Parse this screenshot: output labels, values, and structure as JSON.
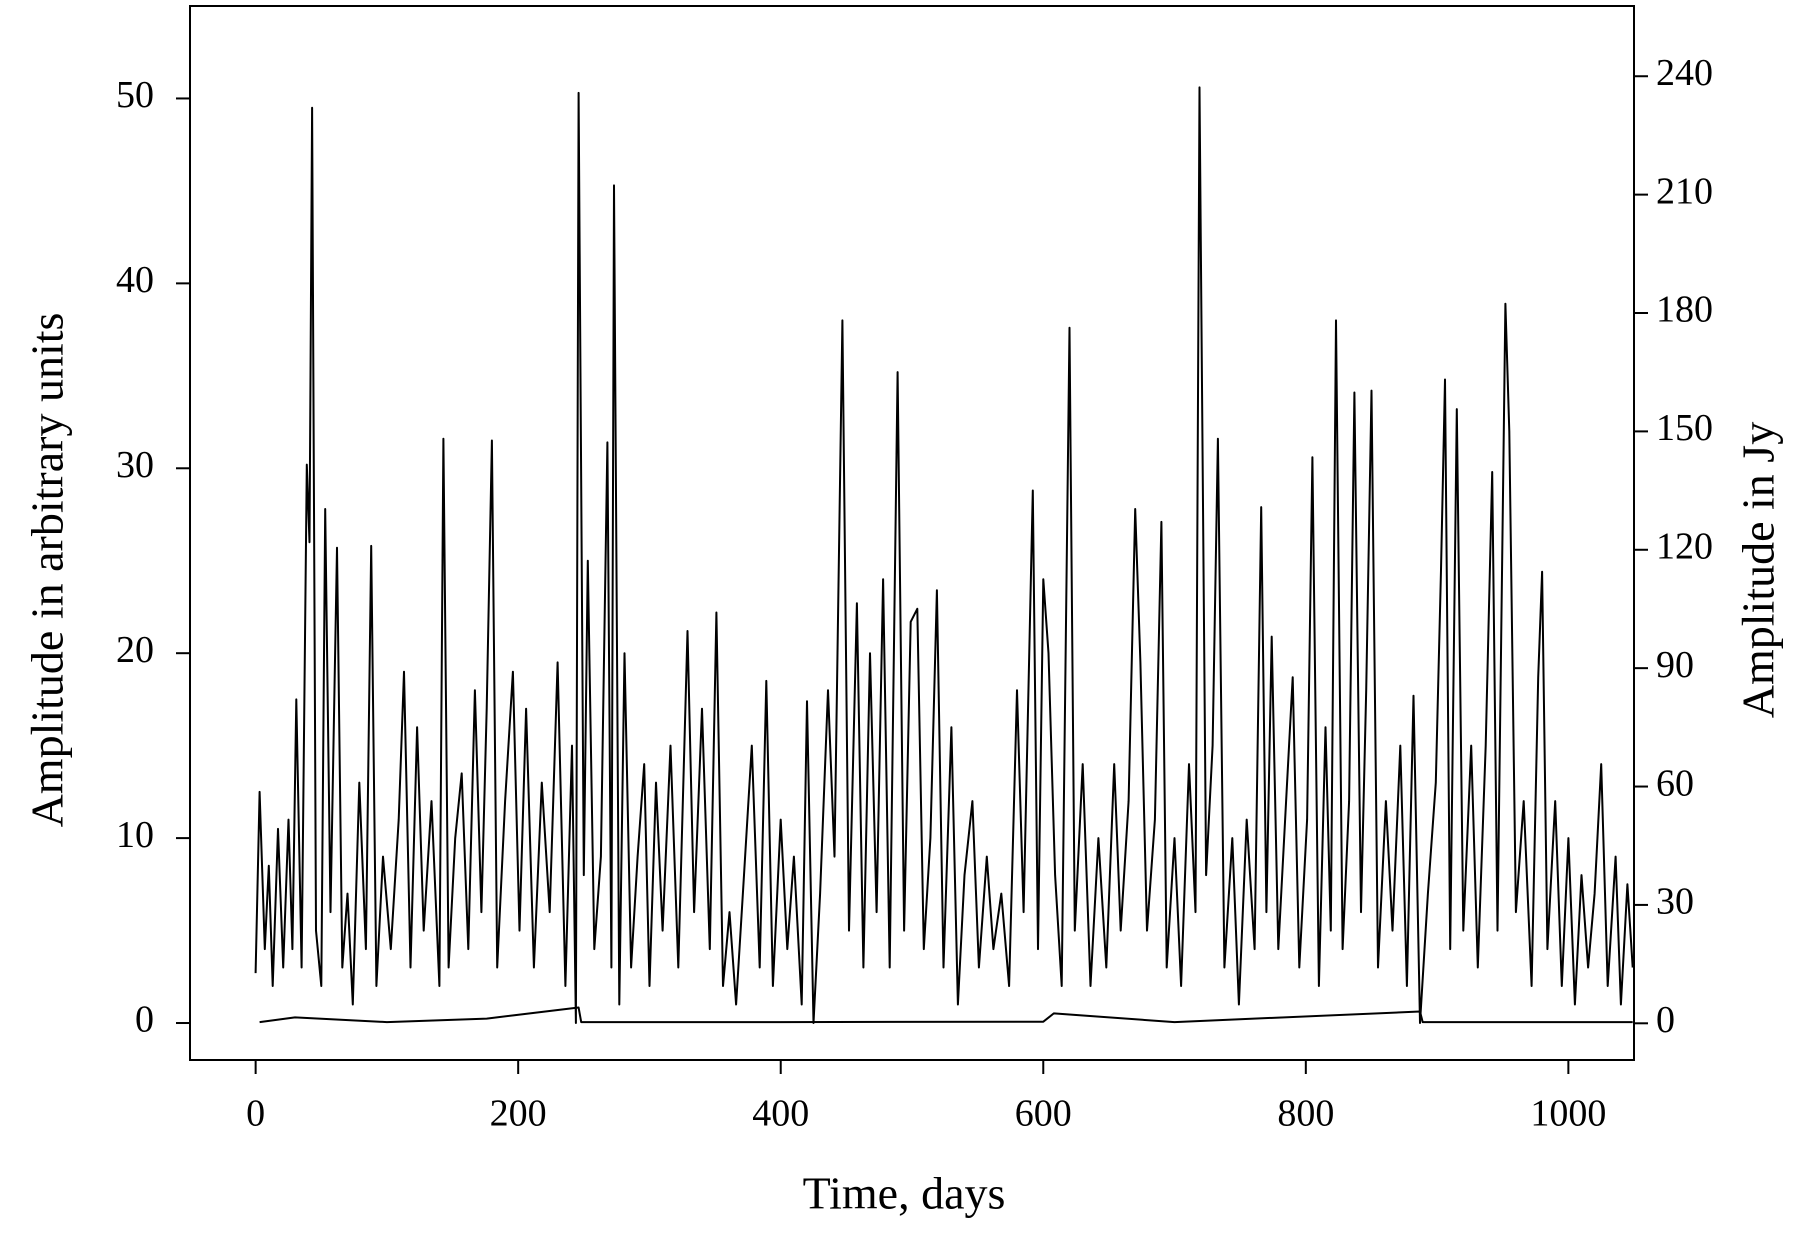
{
  "chart_data": {
    "type": "line",
    "xlabel": "Time, days",
    "ylabel": "Amplitude in arbitrary units",
    "y2label": "Amplitude in Jy",
    "xlim": [
      -50,
      1050
    ],
    "xticks": [
      0,
      200,
      400,
      600,
      800,
      1000
    ],
    "ylim": [
      -2,
      55
    ],
    "yticks": [
      0,
      10,
      20,
      30,
      40,
      50
    ],
    "y2lim": [
      -9.3,
      257.8
    ],
    "y2ticks": [
      0,
      30,
      60,
      90,
      120,
      150,
      180,
      210,
      240
    ],
    "series": [
      {
        "color": "#000000",
        "axis": "y",
        "x": [
          0,
          3,
          7,
          10,
          13,
          17,
          21,
          25,
          28,
          31,
          35,
          39,
          41,
          43,
          46,
          50,
          53,
          57,
          62,
          66,
          70,
          74,
          79,
          84,
          88,
          92,
          97,
          103,
          109,
          113,
          118,
          123,
          128,
          134,
          140,
          143,
          147,
          152,
          157,
          162,
          167,
          172,
          176,
          180,
          184,
          190,
          196,
          201,
          206,
          212,
          218,
          224,
          230,
          236,
          241,
          244,
          246,
          250,
          253,
          258,
          263,
          268,
          271,
          273,
          277,
          281,
          286,
          291,
          296,
          300,
          305,
          310,
          316,
          322,
          329,
          334,
          340,
          346,
          351,
          356,
          361,
          366,
          372,
          378,
          384,
          389,
          394,
          400,
          405,
          410,
          416,
          420,
          425,
          430,
          436,
          441,
          447,
          452,
          458,
          463,
          468,
          473,
          478,
          483,
          489,
          494,
          499,
          504,
          509,
          514,
          519,
          524,
          530,
          535,
          540,
          546,
          551,
          557,
          562,
          568,
          574,
          580,
          585,
          592,
          596,
          600,
          604,
          609,
          614,
          620,
          624,
          630,
          636,
          642,
          648,
          654,
          659,
          665,
          670,
          674,
          679,
          685,
          690,
          694,
          700,
          705,
          711,
          716,
          719,
          724,
          729,
          733,
          738,
          744,
          749,
          755,
          761,
          766,
          770,
          774,
          779,
          785,
          790,
          795,
          801,
          805,
          810,
          815,
          819,
          823,
          828,
          833,
          837,
          842,
          846,
          850,
          855,
          861,
          866,
          872,
          877,
          882,
          887,
          893,
          899,
          903,
          906,
          910,
          915,
          920,
          926,
          931,
          937,
          942,
          946,
          952,
          955,
          960,
          966,
          972,
          977,
          980,
          984,
          990,
          995,
          1000,
          1005,
          1010,
          1015,
          1020,
          1025,
          1030,
          1036,
          1040,
          1045,
          1049
        ],
        "values": [
          2.7,
          12.5,
          4,
          8.5,
          2,
          10.5,
          3,
          11,
          4,
          17.5,
          3,
          30.2,
          26,
          49.5,
          5,
          2,
          27.8,
          6,
          25.7,
          3,
          7,
          1,
          13,
          4,
          25.8,
          2,
          9,
          4,
          11,
          19,
          3,
          16,
          5,
          12,
          2,
          31.6,
          3,
          10,
          13.5,
          4,
          18,
          6,
          17,
          31.5,
          3,
          12,
          19,
          5,
          17,
          3,
          13,
          6,
          19.5,
          2,
          15,
          0,
          50.3,
          8,
          25,
          4,
          9,
          31.4,
          3,
          45.3,
          1,
          20,
          3,
          9,
          14,
          2,
          13,
          5,
          15,
          3,
          21.2,
          6,
          17,
          4,
          22.2,
          2,
          6,
          1,
          8,
          15,
          3,
          18.5,
          2,
          11,
          4,
          9,
          1,
          17.4,
          0,
          7,
          18,
          9,
          38,
          5,
          22.7,
          3,
          20,
          6,
          24,
          3,
          35.2,
          5,
          21.7,
          22.4,
          4,
          10,
          23.4,
          3,
          16,
          1,
          8,
          12,
          3,
          9,
          4,
          7,
          2,
          18,
          6,
          28.8,
          4,
          24,
          20,
          8,
          2,
          37.6,
          5,
          14,
          2,
          10,
          3,
          14,
          5,
          12,
          27.8,
          19.5,
          5,
          11,
          27.1,
          3,
          10,
          2,
          14,
          6,
          50.6,
          8,
          15,
          31.6,
          3,
          10,
          1,
          11,
          4,
          27.9,
          6,
          20.9,
          4,
          12,
          18.7,
          3,
          11,
          30.6,
          2,
          16,
          5,
          38,
          4,
          12,
          34.1,
          6,
          18,
          34.2,
          3,
          12,
          5,
          15,
          2,
          17.7,
          0,
          7,
          13,
          24.5,
          34.8,
          4,
          33.2,
          5,
          15,
          3,
          15,
          29.8,
          5,
          38.9,
          32,
          6,
          12,
          2,
          18.7,
          24.4,
          4,
          12,
          2,
          10,
          1,
          8,
          3,
          7,
          14,
          2,
          9,
          1,
          7.5,
          3
        ]
      },
      {
        "color": "#000000",
        "axis": "y2",
        "x": [
          3,
          30,
          100,
          176,
          246,
          248,
          400,
          600,
          608,
          700,
          887,
          889,
          1049
        ],
        "values": [
          0.3,
          1.5,
          0.3,
          1.2,
          4,
          0.3,
          0.3,
          0.4,
          2.5,
          0.3,
          3,
          0.3,
          0.3
        ]
      }
    ]
  }
}
